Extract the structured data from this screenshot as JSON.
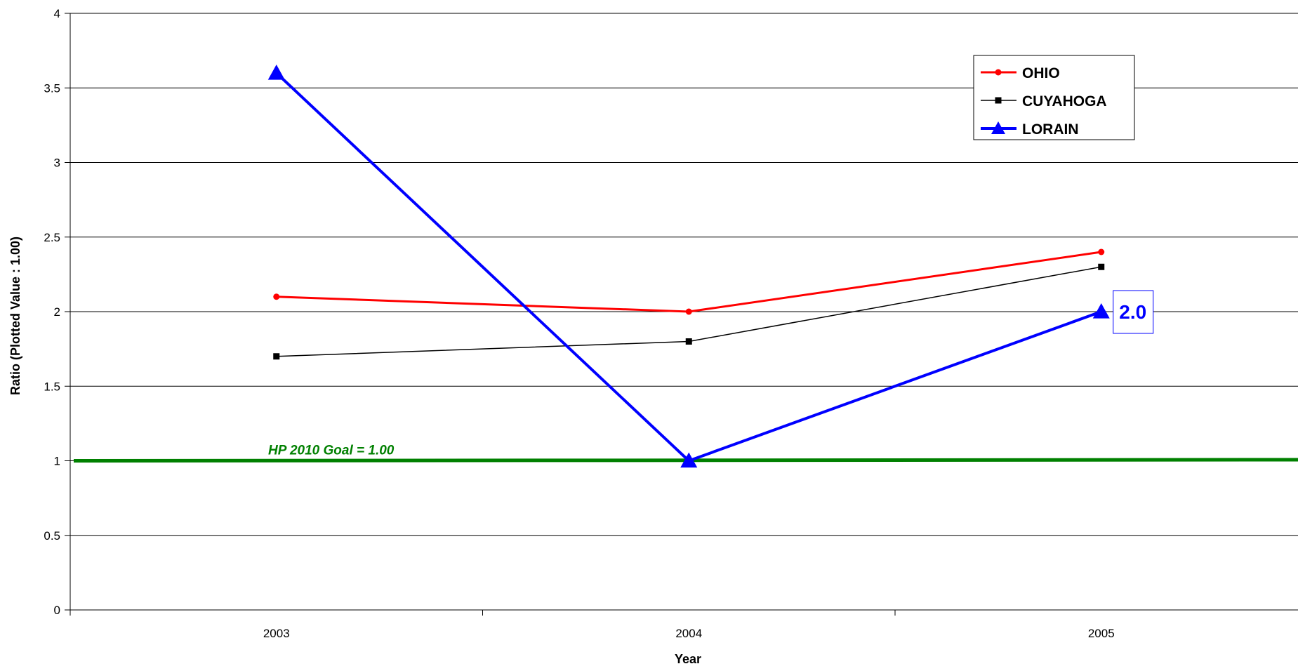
{
  "chart_data": {
    "type": "line",
    "title": "",
    "xlabel": "Year",
    "ylabel": "Ratio (Plotted Value : 1.00)",
    "categories": [
      "2003",
      "2004",
      "2005"
    ],
    "ylim": [
      0,
      4
    ],
    "yticks": [
      "0",
      "0.5",
      "1",
      "1.5",
      "2",
      "2.5",
      "3",
      "3.5",
      "4"
    ],
    "grid": true,
    "legend_position": "top-right",
    "series": [
      {
        "name": "OHIO",
        "values": [
          2.1,
          2.0,
          2.4
        ],
        "color": "#ff0000",
        "marker": "circle"
      },
      {
        "name": "CUYAHOGA",
        "values": [
          1.7,
          1.8,
          2.3
        ],
        "color": "#000000",
        "marker": "square"
      },
      {
        "name": "LORAIN",
        "values": [
          3.6,
          1.0,
          2.0
        ],
        "color": "#0000ff",
        "marker": "triangle"
      }
    ],
    "reference_line": {
      "value": 1.0,
      "label": "HP 2010 Goal = 1.00",
      "color": "#008000"
    },
    "data_label": {
      "series": "LORAIN",
      "category": "2005",
      "text": "2.0",
      "color": "#0000ff"
    }
  }
}
